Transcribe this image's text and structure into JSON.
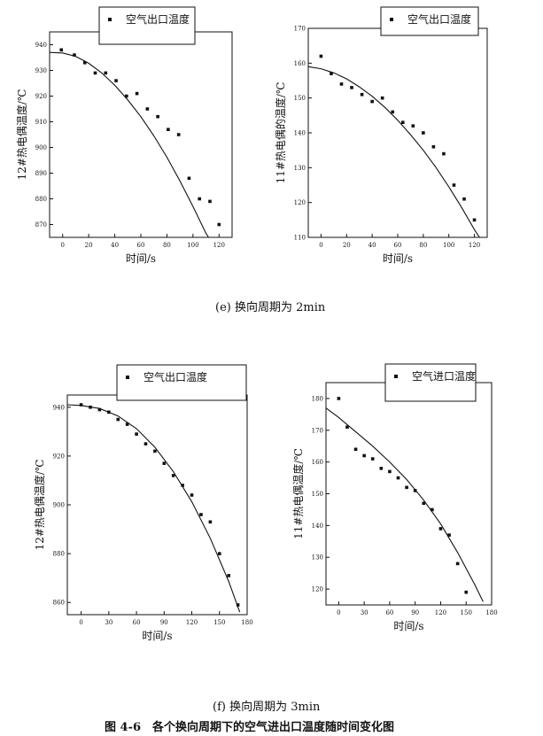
{
  "figure_title": "图 4-6　各个换向周期下的空气进出口温度随时间变化图",
  "captions": {
    "e": "(e) 换向周期为 2min",
    "f": "(f) 换向周期为 3min"
  },
  "chart_data": [
    {
      "type": "scatter",
      "legend": "空气出口温度",
      "legend_position": "top",
      "xlabel": "时间/s",
      "ylabel": "12#热电偶温度/℃",
      "xlim": [
        -10,
        130
      ],
      "ylim": [
        865,
        945
      ],
      "xticks": [
        0,
        20,
        40,
        60,
        80,
        100,
        120
      ],
      "yticks": [
        870,
        880,
        890,
        900,
        910,
        920,
        930,
        940
      ],
      "points": [
        {
          "x": -1,
          "y": 938
        },
        {
          "x": 9,
          "y": 936
        },
        {
          "x": 17,
          "y": 933
        },
        {
          "x": 25,
          "y": 929
        },
        {
          "x": 33,
          "y": 929
        },
        {
          "x": 41,
          "y": 926
        },
        {
          "x": 49,
          "y": 920
        },
        {
          "x": 57,
          "y": 921
        },
        {
          "x": 65,
          "y": 915
        },
        {
          "x": 73,
          "y": 912
        },
        {
          "x": 81,
          "y": 907
        },
        {
          "x": 89,
          "y": 905
        },
        {
          "x": 97,
          "y": 888
        },
        {
          "x": 105,
          "y": 880
        },
        {
          "x": 113,
          "y": 879
        },
        {
          "x": 120,
          "y": 870
        }
      ],
      "fit": [
        {
          "x": -10,
          "y": 937
        },
        {
          "x": 0,
          "y": 936.8
        },
        {
          "x": 10,
          "y": 935.5
        },
        {
          "x": 20,
          "y": 932.8
        },
        {
          "x": 30,
          "y": 929
        },
        {
          "x": 40,
          "y": 924.2
        },
        {
          "x": 50,
          "y": 918.5
        },
        {
          "x": 60,
          "y": 912
        },
        {
          "x": 70,
          "y": 904.5
        },
        {
          "x": 80,
          "y": 896.2
        },
        {
          "x": 90,
          "y": 887
        },
        {
          "x": 100,
          "y": 877
        },
        {
          "x": 110,
          "y": 866.5
        },
        {
          "x": 112,
          "y": 865
        }
      ]
    },
    {
      "type": "scatter",
      "legend": "空气出口温度",
      "legend_position": "top",
      "xlabel": "时间/s",
      "ylabel": "11#热电偶的温度/℃",
      "xlim": [
        -10,
        130
      ],
      "ylim": [
        110,
        170
      ],
      "xticks": [
        0,
        20,
        40,
        60,
        80,
        100,
        120
      ],
      "yticks": [
        110,
        120,
        130,
        140,
        150,
        160,
        170
      ],
      "points": [
        {
          "x": 0,
          "y": 162
        },
        {
          "x": 8,
          "y": 157
        },
        {
          "x": 16,
          "y": 154
        },
        {
          "x": 24,
          "y": 153
        },
        {
          "x": 32,
          "y": 151
        },
        {
          "x": 40,
          "y": 149
        },
        {
          "x": 48,
          "y": 150
        },
        {
          "x": 56,
          "y": 146
        },
        {
          "x": 64,
          "y": 143
        },
        {
          "x": 72,
          "y": 142
        },
        {
          "x": 80,
          "y": 140
        },
        {
          "x": 88,
          "y": 136
        },
        {
          "x": 96,
          "y": 134
        },
        {
          "x": 104,
          "y": 125
        },
        {
          "x": 112,
          "y": 121
        },
        {
          "x": 120,
          "y": 115
        }
      ],
      "fit": [
        {
          "x": -10,
          "y": 159
        },
        {
          "x": 0,
          "y": 158.4
        },
        {
          "x": 10,
          "y": 157.2
        },
        {
          "x": 20,
          "y": 155.5
        },
        {
          "x": 30,
          "y": 153.2
        },
        {
          "x": 40,
          "y": 150.5
        },
        {
          "x": 50,
          "y": 147.3
        },
        {
          "x": 60,
          "y": 143.6
        },
        {
          "x": 70,
          "y": 139.5
        },
        {
          "x": 80,
          "y": 135
        },
        {
          "x": 90,
          "y": 130
        },
        {
          "x": 100,
          "y": 124.5
        },
        {
          "x": 110,
          "y": 118.6
        },
        {
          "x": 120,
          "y": 112.2
        },
        {
          "x": 124,
          "y": 110
        }
      ]
    },
    {
      "type": "scatter",
      "legend": "空气出口温度",
      "legend_position": "top",
      "xlabel": "时间/s",
      "ylabel": "12#热电偶温度/℃",
      "xlim": [
        -15,
        180
      ],
      "ylim": [
        855,
        945
      ],
      "xticks": [
        0,
        30,
        60,
        90,
        120,
        150,
        180
      ],
      "yticks": [
        860,
        880,
        900,
        920,
        940
      ],
      "points": [
        {
          "x": 0,
          "y": 941
        },
        {
          "x": 10,
          "y": 940
        },
        {
          "x": 20,
          "y": 939
        },
        {
          "x": 30,
          "y": 938
        },
        {
          "x": 40,
          "y": 935
        },
        {
          "x": 50,
          "y": 933
        },
        {
          "x": 60,
          "y": 929
        },
        {
          "x": 70,
          "y": 925
        },
        {
          "x": 80,
          "y": 922
        },
        {
          "x": 90,
          "y": 917
        },
        {
          "x": 100,
          "y": 912
        },
        {
          "x": 110,
          "y": 908
        },
        {
          "x": 120,
          "y": 904
        },
        {
          "x": 130,
          "y": 896
        },
        {
          "x": 140,
          "y": 893
        },
        {
          "x": 150,
          "y": 880
        },
        {
          "x": 160,
          "y": 871
        },
        {
          "x": 170,
          "y": 859
        }
      ],
      "fit": [
        {
          "x": -15,
          "y": 941
        },
        {
          "x": 0,
          "y": 940.7
        },
        {
          "x": 20,
          "y": 939.5
        },
        {
          "x": 40,
          "y": 936.4
        },
        {
          "x": 60,
          "y": 931.2
        },
        {
          "x": 80,
          "y": 923.6
        },
        {
          "x": 100,
          "y": 913.6
        },
        {
          "x": 120,
          "y": 901.3
        },
        {
          "x": 140,
          "y": 886.3
        },
        {
          "x": 160,
          "y": 868.6
        },
        {
          "x": 172,
          "y": 856
        }
      ]
    },
    {
      "type": "scatter",
      "legend": "空气进口温度",
      "legend_position": "top",
      "xlabel": "时间/s",
      "ylabel": "11#热电偶温度/℃",
      "xlim": [
        -15,
        180
      ],
      "ylim": [
        115,
        185
      ],
      "xticks": [
        0,
        30,
        60,
        90,
        120,
        150,
        180
      ],
      "yticks": [
        120,
        130,
        140,
        150,
        160,
        170,
        180
      ],
      "points": [
        {
          "x": 0,
          "y": 180
        },
        {
          "x": 10,
          "y": 171
        },
        {
          "x": 20,
          "y": 164
        },
        {
          "x": 30,
          "y": 162
        },
        {
          "x": 40,
          "y": 161
        },
        {
          "x": 50,
          "y": 158
        },
        {
          "x": 60,
          "y": 157
        },
        {
          "x": 70,
          "y": 155
        },
        {
          "x": 80,
          "y": 152
        },
        {
          "x": 90,
          "y": 151
        },
        {
          "x": 100,
          "y": 147
        },
        {
          "x": 110,
          "y": 145
        },
        {
          "x": 120,
          "y": 139
        },
        {
          "x": 130,
          "y": 137
        },
        {
          "x": 140,
          "y": 128
        },
        {
          "x": 150,
          "y": 119
        }
      ],
      "fit": [
        {
          "x": -15,
          "y": 177
        },
        {
          "x": 0,
          "y": 174
        },
        {
          "x": 20,
          "y": 169.5
        },
        {
          "x": 40,
          "y": 165
        },
        {
          "x": 60,
          "y": 160
        },
        {
          "x": 80,
          "y": 154.5
        },
        {
          "x": 100,
          "y": 148
        },
        {
          "x": 120,
          "y": 140.5
        },
        {
          "x": 140,
          "y": 131.5
        },
        {
          "x": 160,
          "y": 121.5
        },
        {
          "x": 170,
          "y": 116
        }
      ]
    }
  ]
}
